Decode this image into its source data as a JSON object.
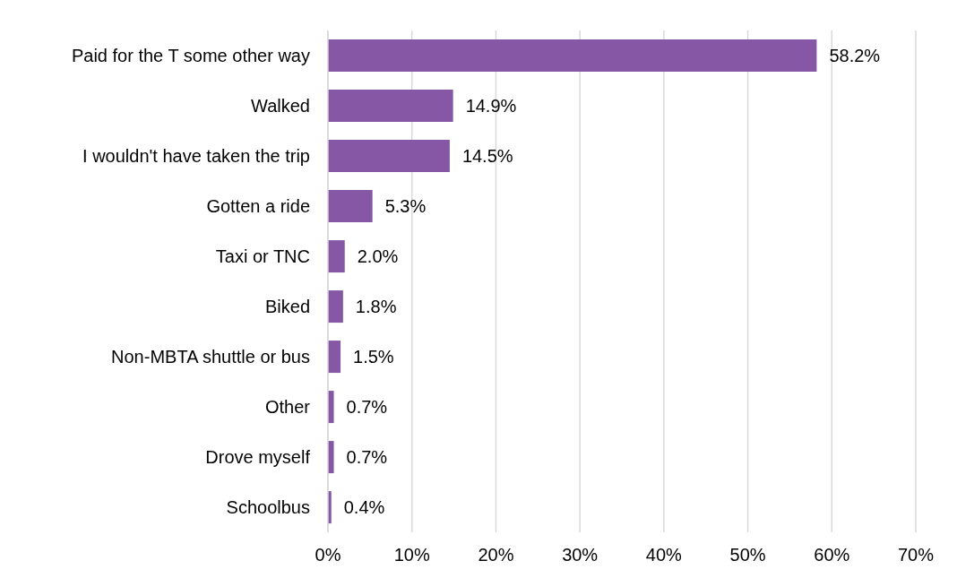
{
  "chart_data": {
    "type": "bar",
    "orientation": "horizontal",
    "categories": [
      "Paid for the T some other way",
      "Walked",
      "I wouldn't have taken the trip",
      "Gotten a ride",
      "Taxi or TNC",
      "Biked",
      "Non-MBTA shuttle or bus",
      "Other",
      "Drove myself",
      "Schoolbus"
    ],
    "values": [
      58.2,
      14.9,
      14.5,
      5.3,
      2.0,
      1.8,
      1.5,
      0.7,
      0.7,
      0.4
    ],
    "value_labels": [
      "58.2%",
      "14.9%",
      "14.5%",
      "5.3%",
      "2.0%",
      "1.8%",
      "1.5%",
      "0.7%",
      "0.7%",
      "0.4%"
    ],
    "color": "#8557a5",
    "xlim": [
      0,
      70
    ],
    "xticks": [
      {
        "value": 0,
        "label": "0%"
      },
      {
        "value": 10,
        "label": "10%"
      },
      {
        "value": 20,
        "label": "20%"
      },
      {
        "value": 30,
        "label": "30%"
      },
      {
        "value": 40,
        "label": "40%"
      },
      {
        "value": 50,
        "label": "50%"
      },
      {
        "value": 60,
        "label": "60%"
      },
      {
        "value": 70,
        "label": "70%"
      }
    ],
    "grid": "x",
    "legend": false
  }
}
